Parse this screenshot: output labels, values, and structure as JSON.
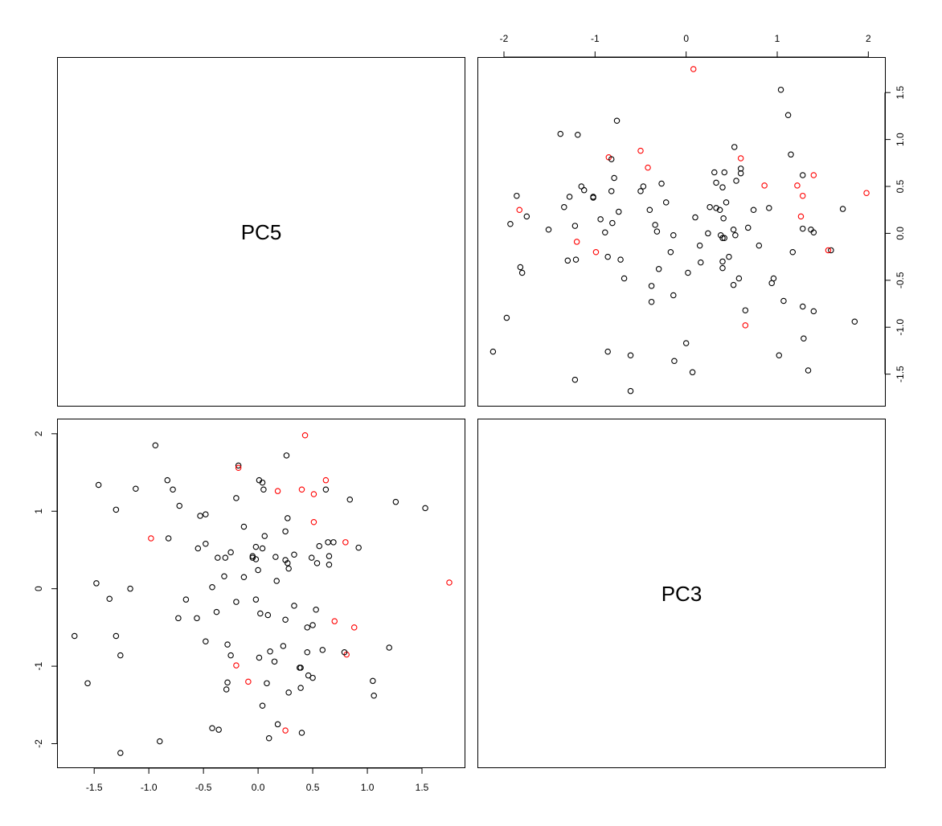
{
  "chart_data": {
    "type": "scatter",
    "layout": "scatterplot-matrix",
    "variables": [
      "PC5",
      "PC3"
    ],
    "colors": {
      "group_a": "#000000",
      "group_b": "#ff0000"
    },
    "marker": "open-circle",
    "axes": {
      "PC5": {
        "range": [
          -1.7,
          1.75
        ],
        "ticks": [
          -1.5,
          -1.0,
          -0.5,
          0.0,
          0.5,
          1.0,
          1.5
        ],
        "tick_labels": [
          "-1.5",
          "-1.0",
          "-0.5",
          "0.0",
          "0.5",
          "1.0",
          "1.5"
        ]
      },
      "PC3": {
        "range": [
          -2.15,
          2.05
        ],
        "ticks": [
          -2,
          -1,
          0,
          1,
          2
        ],
        "tick_labels": [
          "-2",
          "-1",
          "0",
          "1",
          "2"
        ]
      }
    },
    "points": [
      {
        "pc5": 1.75,
        "pc3": 0.08,
        "group": "b"
      },
      {
        "pc5": 1.53,
        "pc3": 1.04,
        "group": "a"
      },
      {
        "pc5": 1.26,
        "pc3": 1.12,
        "group": "a"
      },
      {
        "pc5": 1.06,
        "pc3": -1.38,
        "group": "a"
      },
      {
        "pc5": 1.05,
        "pc3": -1.19,
        "group": "a"
      },
      {
        "pc5": 0.84,
        "pc3": 1.15,
        "group": "a"
      },
      {
        "pc5": 0.81,
        "pc3": -0.85,
        "group": "b"
      },
      {
        "pc5": 0.8,
        "pc3": 0.6,
        "group": "b"
      },
      {
        "pc5": 0.79,
        "pc3": -0.82,
        "group": "a"
      },
      {
        "pc5": 0.92,
        "pc3": 0.53,
        "group": "a"
      },
      {
        "pc5": 0.88,
        "pc3": -0.5,
        "group": "b"
      },
      {
        "pc5": 1.2,
        "pc3": -0.76,
        "group": "a"
      },
      {
        "pc5": 0.7,
        "pc3": -0.42,
        "group": "b"
      },
      {
        "pc5": 0.69,
        "pc3": 0.6,
        "group": "a"
      },
      {
        "pc5": 0.65,
        "pc3": 0.42,
        "group": "a"
      },
      {
        "pc5": 0.65,
        "pc3": 0.31,
        "group": "a"
      },
      {
        "pc5": 0.64,
        "pc3": 0.6,
        "group": "a"
      },
      {
        "pc5": 0.62,
        "pc3": 1.28,
        "group": "a"
      },
      {
        "pc5": 0.62,
        "pc3": 1.4,
        "group": "b"
      },
      {
        "pc5": 0.59,
        "pc3": -0.79,
        "group": "a"
      },
      {
        "pc5": 0.56,
        "pc3": 0.55,
        "group": "a"
      },
      {
        "pc5": 0.54,
        "pc3": 0.33,
        "group": "a"
      },
      {
        "pc5": 0.53,
        "pc3": -0.27,
        "group": "a"
      },
      {
        "pc5": 0.51,
        "pc3": 1.22,
        "group": "b"
      },
      {
        "pc5": 0.51,
        "pc3": 0.86,
        "group": "b"
      },
      {
        "pc5": 0.5,
        "pc3": -1.15,
        "group": "a"
      },
      {
        "pc5": 0.5,
        "pc3": -0.47,
        "group": "a"
      },
      {
        "pc5": 0.49,
        "pc3": 0.4,
        "group": "a"
      },
      {
        "pc5": 0.46,
        "pc3": -1.12,
        "group": "a"
      },
      {
        "pc5": 0.45,
        "pc3": -0.5,
        "group": "a"
      },
      {
        "pc5": 0.45,
        "pc3": -0.82,
        "group": "a"
      },
      {
        "pc5": 0.43,
        "pc3": 1.98,
        "group": "b"
      },
      {
        "pc5": 0.4,
        "pc3": 1.28,
        "group": "b"
      },
      {
        "pc5": 0.4,
        "pc3": -1.86,
        "group": "a"
      },
      {
        "pc5": 0.39,
        "pc3": -1.28,
        "group": "a"
      },
      {
        "pc5": 0.38,
        "pc3": -1.02,
        "group": "a"
      },
      {
        "pc5": 0.39,
        "pc3": -1.02,
        "group": "a"
      },
      {
        "pc5": 0.33,
        "pc3": 0.44,
        "group": "a"
      },
      {
        "pc5": 0.33,
        "pc3": -0.22,
        "group": "a"
      },
      {
        "pc5": 0.28,
        "pc3": -1.34,
        "group": "a"
      },
      {
        "pc5": 0.28,
        "pc3": 0.26,
        "group": "a"
      },
      {
        "pc5": 0.27,
        "pc3": 0.91,
        "group": "a"
      },
      {
        "pc5": 0.27,
        "pc3": 0.33,
        "group": "a"
      },
      {
        "pc5": 0.26,
        "pc3": 1.72,
        "group": "a"
      },
      {
        "pc5": 0.25,
        "pc3": 0.74,
        "group": "a"
      },
      {
        "pc5": 0.25,
        "pc3": -0.4,
        "group": "a"
      },
      {
        "pc5": 0.25,
        "pc3": 0.37,
        "group": "a"
      },
      {
        "pc5": 0.25,
        "pc3": -1.83,
        "group": "b"
      },
      {
        "pc5": 0.23,
        "pc3": -0.74,
        "group": "a"
      },
      {
        "pc5": 0.18,
        "pc3": 1.26,
        "group": "b"
      },
      {
        "pc5": 0.18,
        "pc3": -1.75,
        "group": "a"
      },
      {
        "pc5": 0.17,
        "pc3": 0.1,
        "group": "a"
      },
      {
        "pc5": 0.16,
        "pc3": 0.41,
        "group": "a"
      },
      {
        "pc5": 0.15,
        "pc3": -0.94,
        "group": "a"
      },
      {
        "pc5": 0.11,
        "pc3": -0.81,
        "group": "a"
      },
      {
        "pc5": 0.1,
        "pc3": -1.93,
        "group": "a"
      },
      {
        "pc5": 0.08,
        "pc3": -1.22,
        "group": "a"
      },
      {
        "pc5": 0.09,
        "pc3": -0.34,
        "group": "a"
      },
      {
        "pc5": 0.06,
        "pc3": 0.68,
        "group": "a"
      },
      {
        "pc5": 0.05,
        "pc3": 1.28,
        "group": "a"
      },
      {
        "pc5": 0.04,
        "pc3": 1.37,
        "group": "a"
      },
      {
        "pc5": 0.04,
        "pc3": 0.52,
        "group": "a"
      },
      {
        "pc5": 0.04,
        "pc3": -1.51,
        "group": "a"
      },
      {
        "pc5": 0.02,
        "pc3": -0.32,
        "group": "a"
      },
      {
        "pc5": 0.01,
        "pc3": 1.4,
        "group": "a"
      },
      {
        "pc5": 0.01,
        "pc3": -0.89,
        "group": "a"
      },
      {
        "pc5": 0.0,
        "pc3": 0.24,
        "group": "a"
      },
      {
        "pc5": -0.02,
        "pc3": 0.38,
        "group": "a"
      },
      {
        "pc5": -0.02,
        "pc3": -0.14,
        "group": "a"
      },
      {
        "pc5": -0.02,
        "pc3": 0.54,
        "group": "a"
      },
      {
        "pc5": -0.05,
        "pc3": 0.4,
        "group": "a"
      },
      {
        "pc5": -0.05,
        "pc3": 0.42,
        "group": "a"
      },
      {
        "pc5": -0.09,
        "pc3": -1.2,
        "group": "b"
      },
      {
        "pc5": -0.13,
        "pc3": 0.8,
        "group": "a"
      },
      {
        "pc5": -0.13,
        "pc3": 0.15,
        "group": "a"
      },
      {
        "pc5": -0.18,
        "pc3": 1.59,
        "group": "a"
      },
      {
        "pc5": -0.18,
        "pc3": 1.56,
        "group": "b"
      },
      {
        "pc5": -0.2,
        "pc3": 1.17,
        "group": "a"
      },
      {
        "pc5": -0.2,
        "pc3": -0.99,
        "group": "b"
      },
      {
        "pc5": -0.2,
        "pc3": -0.17,
        "group": "a"
      },
      {
        "pc5": -0.25,
        "pc3": 0.47,
        "group": "a"
      },
      {
        "pc5": -0.25,
        "pc3": -0.86,
        "group": "a"
      },
      {
        "pc5": -0.28,
        "pc3": -0.72,
        "group": "a"
      },
      {
        "pc5": -0.28,
        "pc3": -1.21,
        "group": "a"
      },
      {
        "pc5": -0.29,
        "pc3": -1.3,
        "group": "a"
      },
      {
        "pc5": -0.3,
        "pc3": 0.4,
        "group": "a"
      },
      {
        "pc5": -0.31,
        "pc3": 0.16,
        "group": "a"
      },
      {
        "pc5": -0.36,
        "pc3": -1.82,
        "group": "a"
      },
      {
        "pc5": -0.37,
        "pc3": 0.4,
        "group": "a"
      },
      {
        "pc5": -0.38,
        "pc3": -0.3,
        "group": "a"
      },
      {
        "pc5": -0.42,
        "pc3": 0.02,
        "group": "a"
      },
      {
        "pc5": -0.42,
        "pc3": -1.8,
        "group": "a"
      },
      {
        "pc5": -0.48,
        "pc3": 0.58,
        "group": "a"
      },
      {
        "pc5": -0.48,
        "pc3": -0.68,
        "group": "a"
      },
      {
        "pc5": -0.48,
        "pc3": 0.96,
        "group": "a"
      },
      {
        "pc5": -0.53,
        "pc3": 0.94,
        "group": "a"
      },
      {
        "pc5": -0.55,
        "pc3": 0.52,
        "group": "a"
      },
      {
        "pc5": -0.56,
        "pc3": -0.38,
        "group": "a"
      },
      {
        "pc5": -0.66,
        "pc3": -0.14,
        "group": "a"
      },
      {
        "pc5": -0.72,
        "pc3": 1.07,
        "group": "a"
      },
      {
        "pc5": -0.73,
        "pc3": -0.38,
        "group": "a"
      },
      {
        "pc5": -0.78,
        "pc3": 1.28,
        "group": "a"
      },
      {
        "pc5": -0.83,
        "pc3": 1.4,
        "group": "a"
      },
      {
        "pc5": -0.82,
        "pc3": 0.65,
        "group": "a"
      },
      {
        "pc5": -0.9,
        "pc3": -1.97,
        "group": "a"
      },
      {
        "pc5": -0.94,
        "pc3": 1.85,
        "group": "a"
      },
      {
        "pc5": -0.98,
        "pc3": 0.65,
        "group": "b"
      },
      {
        "pc5": -1.12,
        "pc3": 1.29,
        "group": "a"
      },
      {
        "pc5": -1.17,
        "pc3": 0.0,
        "group": "a"
      },
      {
        "pc5": -1.26,
        "pc3": -0.86,
        "group": "a"
      },
      {
        "pc5": -1.26,
        "pc3": -2.12,
        "group": "a"
      },
      {
        "pc5": -1.3,
        "pc3": -0.61,
        "group": "a"
      },
      {
        "pc5": -1.3,
        "pc3": 1.02,
        "group": "a"
      },
      {
        "pc5": -1.36,
        "pc3": -0.13,
        "group": "a"
      },
      {
        "pc5": -1.46,
        "pc3": 1.34,
        "group": "a"
      },
      {
        "pc5": -1.48,
        "pc3": 0.07,
        "group": "a"
      },
      {
        "pc5": -1.56,
        "pc3": -1.22,
        "group": "a"
      },
      {
        "pc5": -1.68,
        "pc3": -0.61,
        "group": "a"
      }
    ]
  }
}
